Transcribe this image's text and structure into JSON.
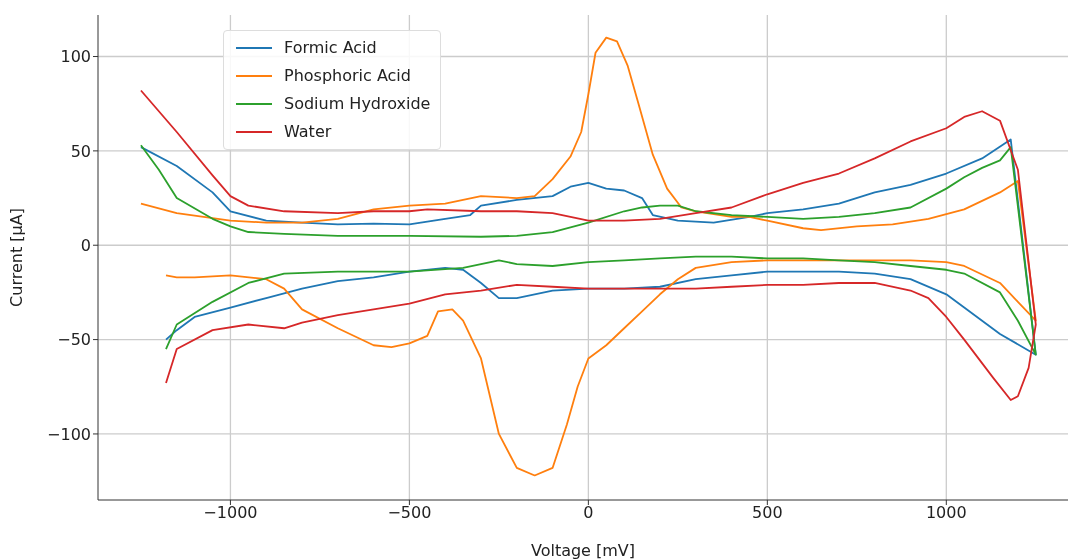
{
  "chart_data": {
    "type": "line",
    "xlabel": "Voltage [mV]",
    "ylabel": "Current [μA]",
    "xlim": [
      -1370,
      1340
    ],
    "xticks": [
      -1000,
      -500,
      0,
      500,
      1000
    ],
    "ylim": [
      -135,
      122
    ],
    "yticks": [
      -100,
      -50,
      0,
      50,
      100
    ],
    "grid": true,
    "legend": "top left",
    "marker": "none",
    "line_style": "solid",
    "series": [
      {
        "name": "Formic Acid",
        "color": "#1f77b4",
        "x": [
          -1250,
          -1150,
          -1050,
          -1000,
          -900,
          -800,
          -700,
          -600,
          -500,
          -400,
          -330,
          -300,
          -200,
          -100,
          -50,
          0,
          50,
          100,
          150,
          180,
          250,
          350,
          450,
          500,
          600,
          700,
          800,
          900,
          1000,
          1100,
          1180,
          1250,
          1150,
          1050,
          1000,
          900,
          800,
          700,
          600,
          500,
          400,
          300,
          200,
          100,
          0,
          -100,
          -150,
          -200,
          -250,
          -300,
          -350,
          -400,
          -500,
          -600,
          -700,
          -800,
          -900,
          -1000,
          -1100,
          -1150,
          -1180
        ],
        "values": [
          52,
          42,
          28,
          18,
          13,
          12,
          11,
          11.5,
          11,
          14,
          16,
          21,
          24,
          26,
          31,
          33,
          30,
          29,
          25,
          16,
          13,
          12,
          15,
          17,
          19,
          22,
          28,
          32,
          38,
          46,
          56,
          -58,
          -47,
          -33,
          -26,
          -18,
          -15,
          -14,
          -14,
          -14,
          -16,
          -18,
          -22,
          -23,
          -23,
          -24,
          -26,
          -28,
          -28,
          -20,
          -13,
          -12,
          -14,
          -17,
          -19,
          -23,
          -28,
          -33,
          -38,
          -45,
          -50
        ]
      },
      {
        "name": "Phosphoric Acid",
        "color": "#ff7f0e",
        "x": [
          -1250,
          -1150,
          -1000,
          -900,
          -800,
          -700,
          -600,
          -500,
          -400,
          -300,
          -200,
          -150,
          -100,
          -50,
          -20,
          0,
          20,
          50,
          80,
          110,
          140,
          180,
          220,
          260,
          300,
          400,
          450,
          500,
          600,
          650,
          750,
          850,
          950,
          1050,
          1150,
          1200,
          1250,
          1200,
          1150,
          1050,
          1000,
          900,
          800,
          700,
          600,
          500,
          400,
          300,
          250,
          200,
          150,
          100,
          50,
          0,
          -30,
          -60,
          -100,
          -150,
          -200,
          -250,
          -300,
          -350,
          -380,
          -420,
          -450,
          -500,
          -550,
          -600,
          -700,
          -800,
          -850,
          -900,
          -1000,
          -1100,
          -1150,
          -1180
        ],
        "values": [
          22,
          17,
          13,
          12,
          12,
          14,
          19,
          21,
          22,
          26,
          25,
          26,
          35,
          47,
          60,
          80,
          102,
          110,
          108,
          95,
          75,
          48,
          30,
          20,
          18,
          15,
          15,
          13,
          9,
          8,
          10,
          11,
          14,
          19,
          28,
          34,
          -40,
          -30,
          -20,
          -11,
          -9,
          -8,
          -8,
          -8,
          -8,
          -8,
          -9,
          -12,
          -18,
          -26,
          -35,
          -44,
          -53,
          -60,
          -75,
          -95,
          -118,
          -122,
          -118,
          -100,
          -60,
          -40,
          -34,
          -35,
          -48,
          -52,
          -54,
          -53,
          -44,
          -34,
          -23,
          -18,
          -16,
          -17,
          -17,
          -16
        ]
      },
      {
        "name": "Sodium Hydroxide",
        "color": "#2ca02c",
        "x": [
          -1250,
          -1200,
          -1150,
          -1050,
          -1000,
          -950,
          -850,
          -700,
          -500,
          -300,
          -200,
          -100,
          0,
          100,
          150,
          200,
          250,
          300,
          400,
          500,
          600,
          700,
          800,
          900,
          1000,
          1050,
          1100,
          1150,
          1180,
          1250,
          1200,
          1150,
          1050,
          1000,
          900,
          800,
          700,
          600,
          500,
          400,
          300,
          200,
          100,
          0,
          -100,
          -200,
          -250,
          -300,
          -350,
          -500,
          -700,
          -850,
          -950,
          -1050,
          -1150,
          -1180
        ],
        "values": [
          53,
          40,
          25,
          14,
          10,
          7,
          6,
          5,
          5,
          4.5,
          5,
          7,
          12,
          18,
          20,
          21,
          21,
          18,
          16,
          15,
          14,
          15,
          17,
          20,
          30,
          36,
          41,
          45,
          52,
          -58,
          -40,
          -25,
          -15,
          -13,
          -11,
          -9,
          -8,
          -7,
          -7,
          -6,
          -6,
          -7,
          -8,
          -9,
          -11,
          -10,
          -8,
          -10,
          -12,
          -14,
          -14,
          -15,
          -20,
          -30,
          -42,
          -55
        ]
      },
      {
        "name": "Water",
        "color": "#d62728",
        "x": [
          -1250,
          -1150,
          -1050,
          -1000,
          -950,
          -850,
          -700,
          -600,
          -500,
          -450,
          -300,
          -200,
          -100,
          0,
          100,
          200,
          300,
          400,
          500,
          600,
          700,
          800,
          900,
          1000,
          1050,
          1100,
          1150,
          1200,
          1250,
          1230,
          1200,
          1180,
          1130,
          1050,
          1000,
          950,
          900,
          800,
          700,
          600,
          500,
          400,
          300,
          200,
          100,
          0,
          -100,
          -200,
          -300,
          -400,
          -500,
          -600,
          -700,
          -800,
          -850,
          -950,
          -1050,
          -1150,
          -1180
        ],
        "values": [
          82,
          60,
          37,
          26,
          21,
          18,
          17,
          18,
          18,
          19,
          18,
          18,
          17,
          13,
          13,
          14,
          17,
          20,
          27,
          33,
          38,
          46,
          55,
          62,
          68,
          71,
          66,
          40,
          -42,
          -65,
          -80,
          -82,
          -70,
          -50,
          -38,
          -28,
          -24,
          -20,
          -20,
          -21,
          -21,
          -22,
          -23,
          -23,
          -23,
          -23,
          -22,
          -21,
          -24,
          -26,
          -31,
          -34,
          -37,
          -41,
          -44,
          -42,
          -45,
          -55,
          -73
        ]
      }
    ]
  }
}
